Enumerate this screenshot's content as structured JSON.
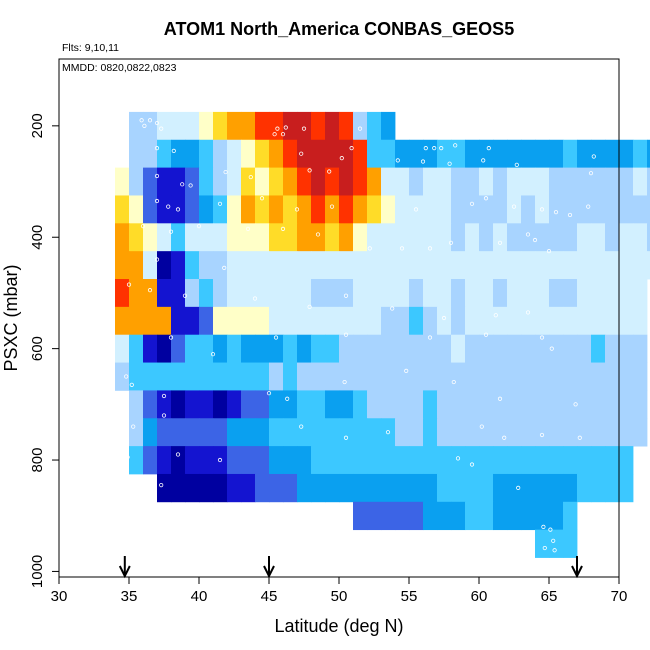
{
  "chart_data": {
    "type": "heatmap",
    "title": "ATOM1 North_America CONBAS_GEOS5",
    "annotations": {
      "flights": "Flts: 9,10,11",
      "dates": "MMDD: 0820,0822,0823"
    },
    "xlabel": "Latitude (deg N)",
    "ylabel": "PSXC (mbar)",
    "xlim": [
      30,
      70
    ],
    "ylim": [
      1010,
      80
    ],
    "x_ticks": [
      "30",
      "35",
      "40",
      "45",
      "50",
      "55",
      "60",
      "65",
      "70"
    ],
    "y_ticks": [
      "200",
      "400",
      "600",
      "800",
      "1000"
    ],
    "y_axis_reversed": true,
    "grid": false,
    "legend": "none",
    "color_scale": [
      "#0000a0",
      "#1414d0",
      "#3c64e6",
      "#0aa0f0",
      "#3cc8ff",
      "#a8d4ff",
      "#d2f0ff",
      "#ffffc8",
      "#ffdc28",
      "#ffa000",
      "#ff3200",
      "#c81e1e"
    ],
    "flight_latitude_markers": [
      34.7,
      45,
      67
    ],
    "cell_size": {
      "latitude_deg": 1,
      "pressure_mbar": 50
    },
    "cells_format": "pressure level (mbar), latitude of first cell, colour-scale indices for consecutive 1 deg cells",
    "cells": [
      [
        200,
        35,
        [
          5,
          5,
          6,
          6,
          6,
          7,
          8,
          9,
          9,
          10,
          10,
          11,
          11,
          10,
          11,
          10,
          5,
          4,
          3
        ]
      ],
      [
        250,
        35,
        [
          5,
          5,
          4,
          3,
          3,
          4,
          5,
          6,
          7,
          8,
          9,
          10,
          11,
          11,
          11,
          11,
          10,
          4,
          4,
          3,
          3,
          3,
          4,
          4,
          3,
          3,
          3,
          3,
          3,
          3,
          3,
          4,
          3,
          3,
          3,
          3,
          4,
          3,
          2,
          2,
          2,
          3,
          3,
          3,
          4
        ]
      ],
      [
        300,
        34,
        [
          7,
          5,
          2,
          1,
          1,
          2,
          4,
          5,
          6,
          8,
          7,
          8,
          9,
          10,
          11,
          10,
          11,
          10,
          9,
          6,
          6,
          5,
          6,
          6,
          5,
          5,
          6,
          5,
          6,
          6,
          6,
          5,
          5,
          5,
          5,
          5,
          5,
          6,
          5,
          5,
          5,
          4,
          5,
          5,
          4
        ]
      ],
      [
        350,
        34,
        [
          8,
          7,
          2,
          1,
          1,
          2,
          3,
          4,
          7,
          9,
          8,
          9,
          8,
          9,
          10,
          9,
          10,
          9,
          8,
          7,
          6,
          6,
          6,
          6,
          5,
          5,
          5,
          5,
          6,
          5,
          6,
          5,
          5,
          5,
          5,
          5,
          5,
          5,
          5,
          5,
          5,
          5,
          4,
          6,
          5
        ]
      ],
      [
        400,
        34,
        [
          9,
          8,
          7,
          6,
          4,
          6,
          6,
          6,
          7,
          7,
          7,
          8,
          8,
          9,
          9,
          8,
          9,
          7,
          6,
          6,
          6,
          6,
          6,
          6,
          5,
          6,
          5,
          6,
          5,
          5,
          5,
          5,
          5,
          6,
          6,
          5,
          6,
          6,
          5,
          5,
          6,
          5,
          5,
          5,
          4
        ]
      ],
      [
        450,
        34,
        [
          9,
          9,
          6,
          0,
          1,
          4,
          5,
          5,
          6,
          6,
          6,
          6,
          6,
          6,
          6,
          6,
          6,
          6,
          6,
          6,
          6,
          6,
          6,
          6,
          6,
          6,
          6,
          6,
          6,
          6,
          6,
          6,
          6,
          6,
          6,
          6,
          6,
          6,
          6,
          6,
          6,
          6,
          6,
          6,
          4
        ]
      ],
      [
        500,
        34,
        [
          10,
          9,
          9,
          1,
          1,
          5,
          4,
          5,
          6,
          6,
          6,
          6,
          6,
          6,
          5,
          5,
          5,
          6,
          6,
          6,
          6,
          5,
          6,
          6,
          5,
          6,
          6,
          5,
          6,
          6,
          6,
          5,
          5,
          6,
          6,
          6,
          6,
          6
        ]
      ],
      [
        550,
        34,
        [
          9,
          9,
          9,
          9,
          1,
          1,
          2,
          7,
          7,
          7,
          7,
          6,
          6,
          6,
          6,
          6,
          6,
          6,
          6,
          5,
          5,
          4,
          5,
          6,
          5,
          6,
          6,
          6,
          6,
          6,
          6,
          6,
          6,
          6,
          6,
          6,
          6,
          6
        ]
      ],
      [
        600,
        34,
        [
          6,
          4,
          1,
          0,
          2,
          4,
          4,
          3,
          4,
          3,
          3,
          3,
          4,
          3,
          4,
          4,
          5,
          5,
          5,
          5,
          5,
          5,
          5,
          5,
          6,
          5,
          5,
          5,
          5,
          5,
          5,
          5,
          5,
          5,
          4,
          5,
          5,
          5
        ]
      ],
      [
        650,
        34,
        [
          5,
          4,
          4,
          4,
          4,
          4,
          4,
          4,
          4,
          4,
          4,
          5,
          4,
          5,
          5,
          5,
          5,
          5,
          5,
          5,
          5,
          5,
          5,
          5,
          5,
          5,
          5,
          5,
          5,
          5,
          5,
          5,
          5,
          5,
          5,
          5,
          5,
          5
        ]
      ],
      [
        700,
        35,
        [
          5,
          2,
          1,
          0,
          1,
          1,
          0,
          1,
          2,
          2,
          3,
          3,
          4,
          4,
          3,
          3,
          4,
          5,
          5,
          5,
          5,
          4,
          5,
          5,
          5,
          5,
          5,
          5,
          5,
          5,
          5,
          5,
          5,
          5,
          5,
          5,
          5
        ]
      ],
      [
        750,
        35,
        [
          5,
          3,
          2,
          2,
          2,
          2,
          2,
          3,
          3,
          3,
          4,
          4,
          4,
          4,
          4,
          4,
          4,
          4,
          4,
          5,
          5,
          4,
          5,
          5,
          5,
          5,
          5,
          5,
          5,
          5,
          5,
          5,
          5,
          5,
          5,
          5,
          5
        ]
      ],
      [
        800,
        35,
        [
          4,
          2,
          1,
          0,
          1,
          1,
          1,
          2,
          2,
          2,
          3,
          3,
          3,
          4,
          4,
          4,
          4,
          4,
          4,
          4,
          4,
          4,
          4,
          4,
          4,
          4,
          4,
          4,
          4,
          4,
          4,
          4,
          4,
          4,
          4,
          4
        ]
      ],
      [
        850,
        37,
        [
          0,
          0,
          0,
          0,
          0,
          1,
          1,
          2,
          2,
          2,
          3,
          3,
          3,
          3,
          3,
          3,
          3,
          3,
          3,
          3,
          4,
          4,
          4,
          4,
          3,
          3,
          3,
          3,
          3,
          3,
          4,
          4,
          4,
          4
        ]
      ],
      [
        900,
        51,
        [
          2,
          2,
          2,
          2,
          2,
          3,
          3,
          3,
          4,
          4,
          3,
          3,
          3,
          3,
          3,
          4
        ]
      ],
      [
        950,
        64,
        [
          4,
          4,
          4
        ]
      ]
    ],
    "observation_points": [
      [
        35.9,
        190
      ],
      [
        36.5,
        190
      ],
      [
        37,
        195
      ],
      [
        37.3,
        205
      ],
      [
        36.1,
        200
      ],
      [
        45.6,
        205
      ],
      [
        46.2,
        203
      ],
      [
        47.5,
        205
      ],
      [
        51.5,
        205
      ],
      [
        37.0,
        240
      ],
      [
        38.2,
        245
      ],
      [
        45.4,
        215
      ],
      [
        46.0,
        215
      ],
      [
        47.3,
        250
      ],
      [
        50.9,
        240
      ],
      [
        56.2,
        240
      ],
      [
        56.8,
        240
      ],
      [
        57.3,
        240
      ],
      [
        58.3,
        235
      ],
      [
        60.7,
        240
      ],
      [
        68.2,
        255
      ],
      [
        37.0,
        290
      ],
      [
        38.8,
        305
      ],
      [
        39.4,
        307
      ],
      [
        41.9,
        283
      ],
      [
        43.7,
        292
      ],
      [
        47.9,
        280
      ],
      [
        49.3,
        282
      ],
      [
        50.2,
        258
      ],
      [
        54.2,
        262
      ],
      [
        56.0,
        264
      ],
      [
        57.9,
        268
      ],
      [
        60.3,
        262
      ],
      [
        62.7,
        270
      ],
      [
        68.0,
        285
      ],
      [
        37.0,
        335
      ],
      [
        37.8,
        345
      ],
      [
        38.5,
        350
      ],
      [
        41.5,
        340
      ],
      [
        44.5,
        330
      ],
      [
        47.0,
        350
      ],
      [
        49.5,
        345
      ],
      [
        55.5,
        350
      ],
      [
        59.5,
        340
      ],
      [
        60.5,
        330
      ],
      [
        62.5,
        345
      ],
      [
        64.5,
        350
      ],
      [
        65.5,
        355
      ],
      [
        66.5,
        360
      ],
      [
        67.8,
        345
      ],
      [
        36.0,
        380
      ],
      [
        38.0,
        390
      ],
      [
        40.0,
        380
      ],
      [
        43.5,
        385
      ],
      [
        46.0,
        385
      ],
      [
        48.5,
        395
      ],
      [
        52.2,
        420
      ],
      [
        54.5,
        420
      ],
      [
        56.5,
        420
      ],
      [
        58.0,
        410
      ],
      [
        61.5,
        410
      ],
      [
        63.5,
        395
      ],
      [
        64.0,
        405
      ],
      [
        65.0,
        425
      ],
      [
        37.0,
        440
      ],
      [
        41.8,
        455
      ],
      [
        47.9,
        525
      ],
      [
        53.8,
        528
      ],
      [
        57.5,
        545
      ],
      [
        61.2,
        540
      ],
      [
        63.5,
        535
      ],
      [
        35.0,
        485
      ],
      [
        36.5,
        495
      ],
      [
        39.0,
        505
      ],
      [
        44.0,
        510
      ],
      [
        50.5,
        505
      ],
      [
        38.0,
        580
      ],
      [
        41.0,
        610
      ],
      [
        45.5,
        580
      ],
      [
        50.5,
        575
      ],
      [
        56.5,
        580
      ],
      [
        60.5,
        575
      ],
      [
        64.5,
        580
      ],
      [
        65.2,
        600
      ],
      [
        34.8,
        650
      ],
      [
        35.2,
        665
      ],
      [
        37.5,
        685
      ],
      [
        45.0,
        680
      ],
      [
        46.3,
        690
      ],
      [
        50.4,
        660
      ],
      [
        54.8,
        640
      ],
      [
        58.2,
        660
      ],
      [
        61.5,
        690
      ],
      [
        66.9,
        700
      ],
      [
        34.8,
        730
      ],
      [
        35.3,
        740
      ],
      [
        37.5,
        720
      ],
      [
        47.3,
        740
      ],
      [
        50.5,
        760
      ],
      [
        53.5,
        750
      ],
      [
        60.2,
        740
      ],
      [
        61.8,
        760
      ],
      [
        64.5,
        755
      ],
      [
        67.2,
        760
      ],
      [
        34.9,
        795
      ],
      [
        38.5,
        790
      ],
      [
        41.5,
        800
      ],
      [
        58.5,
        797
      ],
      [
        59.5,
        808
      ],
      [
        37.3,
        845
      ],
      [
        62.8,
        850
      ],
      [
        64.6,
        920
      ],
      [
        65.1,
        925
      ],
      [
        65.3,
        945
      ],
      [
        64.7,
        958
      ],
      [
        65.4,
        962
      ]
    ]
  }
}
